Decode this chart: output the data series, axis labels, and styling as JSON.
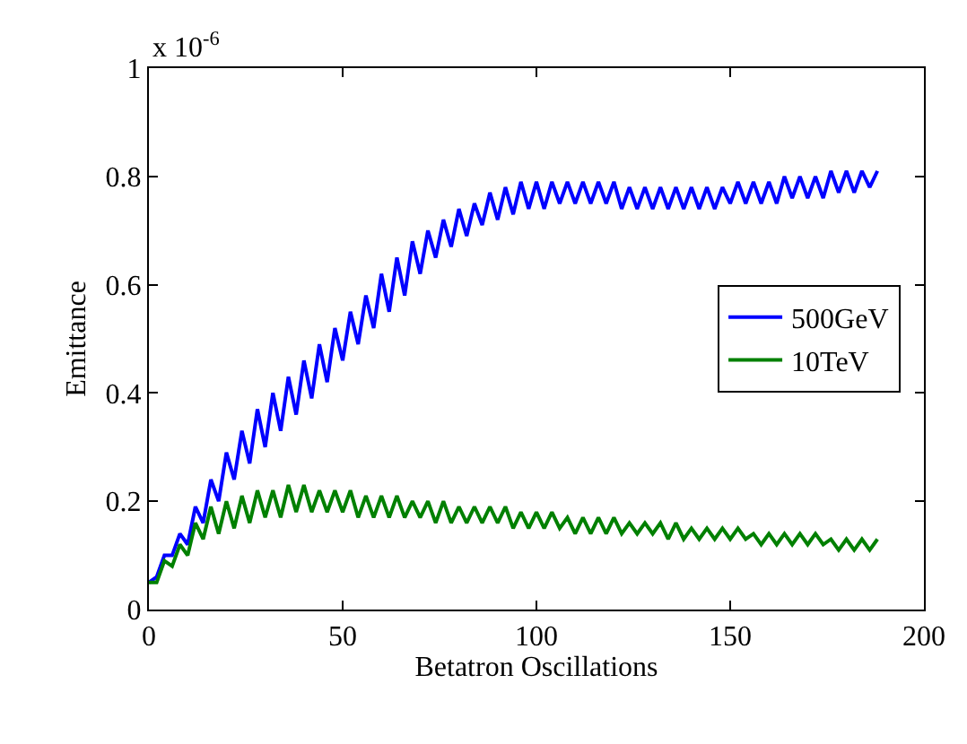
{
  "chart_data": {
    "type": "line",
    "xlabel": "Betatron Oscillations",
    "ylabel": "Emittance",
    "annotations": [
      "x 10$^{-6}$"
    ],
    "x": [
      0,
      2,
      4,
      6,
      8,
      10,
      12,
      14,
      16,
      18,
      20,
      22,
      24,
      26,
      28,
      30,
      32,
      34,
      36,
      38,
      40,
      42,
      44,
      46,
      48,
      50,
      52,
      54,
      56,
      58,
      60,
      62,
      64,
      66,
      68,
      70,
      72,
      74,
      76,
      78,
      80,
      82,
      84,
      86,
      88,
      90,
      92,
      94,
      96,
      98,
      100,
      102,
      104,
      106,
      108,
      110,
      112,
      114,
      116,
      118,
      120,
      122,
      124,
      126,
      128,
      130,
      132,
      134,
      136,
      138,
      140,
      142,
      144,
      146,
      148,
      150,
      152,
      154,
      156,
      158,
      160,
      162,
      164,
      166,
      168,
      170,
      172,
      174,
      176,
      178,
      180,
      182,
      184,
      186,
      188
    ],
    "series": [
      {
        "name": "500GeV",
        "color": "#0000ff",
        "values": [
          0.05,
          0.06,
          0.1,
          0.1,
          0.14,
          0.12,
          0.19,
          0.16,
          0.24,
          0.2,
          0.29,
          0.24,
          0.33,
          0.27,
          0.37,
          0.3,
          0.4,
          0.33,
          0.43,
          0.36,
          0.46,
          0.39,
          0.49,
          0.42,
          0.52,
          0.46,
          0.55,
          0.49,
          0.58,
          0.52,
          0.62,
          0.55,
          0.65,
          0.58,
          0.68,
          0.62,
          0.7,
          0.65,
          0.72,
          0.67,
          0.74,
          0.69,
          0.75,
          0.71,
          0.77,
          0.72,
          0.78,
          0.73,
          0.79,
          0.74,
          0.79,
          0.74,
          0.79,
          0.75,
          0.79,
          0.75,
          0.79,
          0.75,
          0.79,
          0.75,
          0.79,
          0.74,
          0.78,
          0.74,
          0.78,
          0.74,
          0.78,
          0.74,
          0.78,
          0.74,
          0.78,
          0.74,
          0.78,
          0.74,
          0.78,
          0.75,
          0.79,
          0.75,
          0.79,
          0.75,
          0.79,
          0.75,
          0.8,
          0.76,
          0.8,
          0.76,
          0.8,
          0.76,
          0.81,
          0.77,
          0.81,
          0.77,
          0.81,
          0.78,
          0.81
        ]
      },
      {
        "name": "10TeV",
        "color": "#008000",
        "values": [
          0.05,
          0.05,
          0.09,
          0.08,
          0.12,
          0.1,
          0.16,
          0.13,
          0.19,
          0.14,
          0.2,
          0.15,
          0.21,
          0.16,
          0.22,
          0.17,
          0.22,
          0.17,
          0.23,
          0.18,
          0.23,
          0.18,
          0.22,
          0.18,
          0.22,
          0.18,
          0.22,
          0.17,
          0.21,
          0.17,
          0.21,
          0.17,
          0.21,
          0.17,
          0.2,
          0.17,
          0.2,
          0.16,
          0.2,
          0.16,
          0.19,
          0.16,
          0.19,
          0.16,
          0.19,
          0.16,
          0.19,
          0.15,
          0.18,
          0.15,
          0.18,
          0.15,
          0.18,
          0.15,
          0.17,
          0.14,
          0.17,
          0.14,
          0.17,
          0.14,
          0.17,
          0.14,
          0.16,
          0.14,
          0.16,
          0.14,
          0.16,
          0.13,
          0.16,
          0.13,
          0.15,
          0.13,
          0.15,
          0.13,
          0.15,
          0.13,
          0.15,
          0.13,
          0.14,
          0.12,
          0.14,
          0.12,
          0.14,
          0.12,
          0.14,
          0.12,
          0.14,
          0.12,
          0.13,
          0.11,
          0.13,
          0.11,
          0.13,
          0.11,
          0.13
        ]
      }
    ],
    "xlim": [
      0,
      200
    ],
    "xticks": [
      0,
      50,
      100,
      150,
      200
    ],
    "ylim": [
      0,
      1
    ],
    "yticks": [
      0,
      0.2,
      0.4,
      0.6,
      0.8,
      1
    ],
    "legend": "right",
    "marker": "none",
    "line_style": "solid"
  }
}
